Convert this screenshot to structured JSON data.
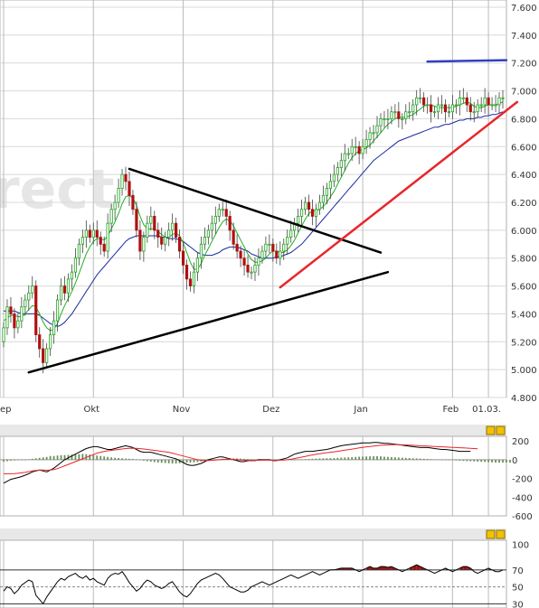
{
  "watermark_text": "rect",
  "chart_data": [
    {
      "type": "candlestick",
      "panel": "price",
      "ylim": [
        4800,
        7600
      ],
      "y_ticks": [
        "7.600",
        "7.400",
        "7.200",
        "7.000",
        "6.800",
        "6.600",
        "6.400",
        "6.200",
        "6.000",
        "5.800",
        "5.600",
        "5.400",
        "5.200",
        "5.000",
        "4.800"
      ],
      "y_tick_values": [
        7600,
        7400,
        7200,
        7000,
        6800,
        6600,
        6400,
        6200,
        6000,
        5800,
        5600,
        5400,
        5200,
        5000,
        4800
      ],
      "x_labels": [
        "ep",
        "Okt",
        "Nov",
        "Dez",
        "Jan",
        "Feb",
        "01.03."
      ],
      "x_label_index": [
        1,
        26,
        51,
        76,
        101,
        126,
        136
      ],
      "grid": true,
      "candles_close": [
        5300,
        5450,
        5400,
        5300,
        5350,
        5450,
        5500,
        5550,
        5600,
        5250,
        5150,
        5050,
        5150,
        5250,
        5350,
        5500,
        5600,
        5550,
        5650,
        5700,
        5800,
        5900,
        5950,
        6000,
        5950,
        6000,
        5950,
        5900,
        5850,
        6050,
        6150,
        6200,
        6300,
        6400,
        6350,
        6250,
        6150,
        6000,
        5850,
        5950,
        6050,
        6100,
        6000,
        5950,
        5900,
        5950,
        6000,
        6050,
        5950,
        5850,
        5750,
        5650,
        5600,
        5700,
        5800,
        5900,
        5950,
        6000,
        6050,
        6100,
        6150,
        6150,
        6100,
        6000,
        5900,
        5850,
        5800,
        5750,
        5700,
        5700,
        5750,
        5800,
        5850,
        5900,
        5900,
        5850,
        5800,
        5850,
        5900,
        5950,
        6000,
        6050,
        6100,
        6150,
        6200,
        6150,
        6100,
        6150,
        6200,
        6250,
        6300,
        6350,
        6400,
        6450,
        6500,
        6550,
        6550,
        6600,
        6600,
        6550,
        6600,
        6650,
        6700,
        6700,
        6750,
        6800,
        6800,
        6800,
        6850,
        6850,
        6800,
        6800,
        6850,
        6850,
        6900,
        6950,
        6950,
        6900,
        6900,
        6850,
        6850,
        6900,
        6900,
        6850,
        6850,
        6900,
        6900,
        6950,
        6950,
        6900,
        6850,
        6850,
        6900,
        6900,
        6950,
        6900,
        6900,
        6900,
        6950,
        6950
      ],
      "candles_open": [
        5200,
        5300,
        5450,
        5400,
        5300,
        5350,
        5450,
        5500,
        5550,
        5600,
        5250,
        5150,
        5050,
        5150,
        5250,
        5350,
        5500,
        5600,
        5550,
        5650,
        5700,
        5800,
        5900,
        5950,
        6000,
        5950,
        6000,
        5950,
        5900,
        5850,
        6050,
        6150,
        6200,
        6300,
        6400,
        6350,
        6250,
        6150,
        6000,
        5850,
        5950,
        6050,
        6100,
        6000,
        5950,
        5900,
        5950,
        6000,
        6050,
        5950,
        5850,
        5750,
        5650,
        5600,
        5700,
        5800,
        5900,
        5950,
        6000,
        6050,
        6100,
        6150,
        6150,
        6100,
        6000,
        5900,
        5850,
        5800,
        5750,
        5700,
        5700,
        5750,
        5800,
        5850,
        5900,
        5900,
        5850,
        5800,
        5850,
        5900,
        5950,
        6000,
        6050,
        6100,
        6150,
        6200,
        6150,
        6100,
        6150,
        6200,
        6250,
        6300,
        6350,
        6400,
        6450,
        6500,
        6550,
        6550,
        6600,
        6600,
        6550,
        6600,
        6650,
        6700,
        6700,
        6750,
        6800,
        6800,
        6800,
        6850,
        6850,
        6800,
        6800,
        6850,
        6850,
        6900,
        6950,
        6950,
        6900,
        6900,
        6850,
        6850,
        6900,
        6900,
        6850,
        6850,
        6900,
        6900,
        6950,
        6950,
        6900,
        6850,
        6850,
        6900,
        6900,
        6950,
        6900,
        6900,
        6900,
        6950
      ],
      "ma_fast": [
        5350,
        5370,
        5390,
        5390,
        5380,
        5380,
        5400,
        5430,
        5460,
        5450,
        5400,
        5340,
        5300,
        5280,
        5290,
        5330,
        5400,
        5460,
        5510,
        5560,
        5620,
        5690,
        5760,
        5830,
        5880,
        5920,
        5940,
        5940,
        5930,
        5960,
        6010,
        6060,
        6120,
        6190,
        6240,
        6250,
        6230,
        6180,
        6100,
        6040,
        6010,
        6010,
        6010,
        5990,
        5970,
        5950,
        5950,
        5970,
        5980,
        5960,
        5910,
        5840,
        5770,
        5720,
        5720,
        5760,
        5820,
        5870,
        5920,
        5970,
        6020,
        6060,
        6080,
        6070,
        6030,
        5980,
        5930,
        5880,
        5830,
        5790,
        5770,
        5770,
        5780,
        5800,
        5830,
        5850,
        5850,
        5840,
        5840,
        5860,
        5890,
        5930,
        5980,
        6030,
        6080,
        6120,
        6140,
        6140,
        6150,
        6170,
        6200,
        6240,
        6280,
        6330,
        6380,
        6430,
        6480,
        6520,
        6550,
        6570,
        6580,
        6590,
        6610,
        6640,
        6670,
        6700,
        6730,
        6760,
        6780,
        6800,
        6810,
        6810,
        6810,
        6820,
        6830,
        6850,
        6870,
        6890,
        6900,
        6900,
        6890,
        6880,
        6880,
        6880,
        6880,
        6880,
        6890,
        6900,
        6910,
        6920,
        6910,
        6890,
        6880,
        6880,
        6890,
        6900,
        6900,
        6900,
        6910,
        6920
      ],
      "ma_slow": [
        5420,
        5420,
        5420,
        5420,
        5410,
        5400,
        5400,
        5400,
        5400,
        5400,
        5390,
        5370,
        5350,
        5330,
        5320,
        5310,
        5320,
        5340,
        5370,
        5400,
        5440,
        5480,
        5520,
        5560,
        5600,
        5640,
        5680,
        5710,
        5740,
        5770,
        5800,
        5830,
        5860,
        5890,
        5920,
        5940,
        5950,
        5960,
        5960,
        5960,
        5960,
        5960,
        5960,
        5960,
        5950,
        5950,
        5940,
        5940,
        5940,
        5930,
        5920,
        5900,
        5880,
        5860,
        5840,
        5830,
        5820,
        5820,
        5820,
        5830,
        5840,
        5860,
        5870,
        5880,
        5880,
        5880,
        5870,
        5860,
        5850,
        5830,
        5820,
        5810,
        5800,
        5800,
        5800,
        5800,
        5810,
        5810,
        5820,
        5830,
        5840,
        5860,
        5880,
        5900,
        5930,
        5960,
        5990,
        6020,
        6050,
        6080,
        6110,
        6140,
        6170,
        6200,
        6230,
        6260,
        6290,
        6320,
        6350,
        6380,
        6410,
        6440,
        6470,
        6500,
        6520,
        6540,
        6560,
        6580,
        6600,
        6620,
        6640,
        6650,
        6660,
        6670,
        6680,
        6690,
        6700,
        6710,
        6720,
        6730,
        6740,
        6740,
        6750,
        6760,
        6760,
        6770,
        6780,
        6790,
        6790,
        6800,
        6800,
        6800,
        6810,
        6810,
        6820,
        6820,
        6830,
        6830,
        6840,
        6850
      ],
      "trendlines": [
        {
          "from": [
            7,
            4980
          ],
          "to": [
            107,
            5700
          ],
          "color": "#000000"
        },
        {
          "from": [
            35,
            6440
          ],
          "to": [
            105,
            5840
          ],
          "color": "#000000"
        },
        {
          "from": [
            77,
            5590
          ],
          "to": [
            145,
            6920
          ],
          "color": "#e8262b"
        },
        {
          "from": [
            118,
            7210
          ],
          "to": [
            140,
            7220
          ],
          "color": "#3040c0"
        }
      ]
    },
    {
      "type": "line",
      "panel": "macd",
      "ylim": [
        -600,
        250
      ],
      "y_ticks": [
        "200",
        "0",
        "-200",
        "-400",
        "-600"
      ],
      "y_tick_values": [
        200,
        0,
        -200,
        -400,
        -600
      ],
      "series": [
        {
          "color": "#000000",
          "values": [
            -250,
            -230,
            -210,
            -200,
            -190,
            -180,
            -165,
            -150,
            -130,
            -120,
            -110,
            -120,
            -130,
            -110,
            -90,
            -60,
            -30,
            0,
            20,
            40,
            60,
            80,
            100,
            120,
            130,
            140,
            140,
            130,
            120,
            110,
            110,
            120,
            130,
            140,
            150,
            140,
            130,
            110,
            90,
            80,
            80,
            80,
            70,
            60,
            50,
            40,
            30,
            20,
            10,
            -10,
            -30,
            -50,
            -60,
            -60,
            -50,
            -40,
            -20,
            0,
            10,
            20,
            30,
            30,
            20,
            10,
            0,
            -10,
            -20,
            -20,
            -10,
            -10,
            -10,
            0,
            0,
            0,
            0,
            -10,
            -10,
            0,
            10,
            20,
            40,
            60,
            70,
            80,
            90,
            90,
            90,
            95,
            100,
            105,
            110,
            120,
            130,
            140,
            150,
            155,
            160,
            165,
            170,
            175,
            180,
            180,
            180,
            185,
            185,
            180,
            175,
            175,
            170,
            165,
            160,
            155,
            150,
            145,
            140,
            135,
            130,
            130,
            130,
            125,
            120,
            115,
            110,
            110,
            105,
            100,
            95,
            90,
            90,
            90,
            90
          ]
        },
        {
          "color": "#e8262b",
          "values": [
            -150,
            -150,
            -150,
            -148,
            -145,
            -140,
            -135,
            -128,
            -120,
            -115,
            -110,
            -110,
            -112,
            -110,
            -105,
            -95,
            -80,
            -65,
            -50,
            -35,
            -20,
            -5,
            10,
            25,
            40,
            55,
            70,
            80,
            90,
            95,
            100,
            105,
            110,
            115,
            120,
            122,
            123,
            122,
            119,
            115,
            110,
            105,
            100,
            95,
            90,
            85,
            80,
            70,
            60,
            50,
            40,
            30,
            20,
            10,
            0,
            -5,
            -8,
            -8,
            -6,
            -3,
            0,
            3,
            5,
            5,
            3,
            0,
            -3,
            -5,
            -6,
            -7,
            -7,
            -6,
            -5,
            -5,
            -5,
            -6,
            -6,
            -5,
            -3,
            0,
            5,
            12,
            20,
            28,
            36,
            44,
            51,
            58,
            64,
            70,
            75,
            80,
            85,
            90,
            96,
            102,
            108,
            114,
            120,
            126,
            132,
            138,
            142,
            146,
            150,
            154,
            156,
            158,
            160,
            160,
            160,
            159,
            158,
            156,
            154,
            152,
            150,
            148,
            146,
            144,
            142,
            140,
            138,
            136,
            134,
            132,
            130,
            128,
            126,
            124,
            122,
            120,
            118
          ]
        }
      ],
      "histogram": [
        -20,
        -15,
        -10,
        -8,
        -6,
        -4,
        -2,
        5,
        10,
        15,
        20,
        25,
        30,
        40,
        40,
        45,
        48,
        50,
        52,
        55,
        58,
        60,
        62,
        60,
        55,
        50,
        45,
        40,
        35,
        30,
        25,
        20,
        18,
        15,
        12,
        10,
        8,
        5,
        0,
        -10,
        -15,
        -20,
        -25,
        -30,
        -32,
        -35,
        -38,
        -40,
        -40,
        -38,
        -35,
        -32,
        -30,
        -28,
        -25,
        -20,
        -15,
        -10,
        -5,
        0,
        5,
        10,
        12,
        14,
        15,
        14,
        12,
        10,
        8,
        5,
        0,
        -2,
        -3,
        -4,
        -5,
        -6,
        -7,
        -6,
        -5,
        -4,
        -2,
        0,
        2,
        4,
        6,
        8,
        10,
        12,
        14,
        15,
        16,
        17,
        18,
        20,
        22,
        24,
        26,
        28,
        30,
        32,
        34,
        35,
        36,
        37,
        38,
        36,
        32,
        30,
        28,
        26,
        24,
        22,
        20,
        18,
        16,
        14,
        12,
        10,
        8,
        6,
        4,
        2,
        0,
        -2,
        -4,
        -6,
        -8,
        -10,
        -12,
        -14,
        -16,
        -18,
        -20,
        -22,
        -24,
        -26,
        -28,
        -30,
        -30,
        -30,
        -30,
        -30
      ]
    },
    {
      "type": "line",
      "panel": "rsi",
      "ylim": [
        25,
        105
      ],
      "y_ticks": [
        "100",
        "70",
        "50",
        "30"
      ],
      "y_tick_values": [
        100,
        70,
        50,
        30
      ],
      "ref_lines": [
        70,
        50,
        30
      ],
      "series": [
        {
          "color": "#000000",
          "values": [
            45,
            50,
            48,
            42,
            46,
            52,
            55,
            58,
            56,
            40,
            35,
            30,
            38,
            44,
            50,
            56,
            60,
            58,
            62,
            64,
            66,
            62,
            60,
            63,
            58,
            60,
            56,
            54,
            52,
            60,
            64,
            66,
            65,
            68,
            62,
            55,
            50,
            45,
            48,
            54,
            58,
            56,
            52,
            50,
            48,
            50,
            54,
            56,
            50,
            44,
            40,
            38,
            42,
            48,
            54,
            58,
            60,
            62,
            64,
            66,
            64,
            60,
            55,
            50,
            48,
            46,
            44,
            44,
            46,
            50,
            52,
            54,
            56,
            54,
            52,
            54,
            56,
            58,
            60,
            62,
            64,
            62,
            60,
            62,
            64,
            66,
            68,
            66,
            64,
            66,
            68,
            70,
            70,
            71,
            72,
            72,
            72,
            72,
            70,
            68,
            70,
            72,
            74,
            72,
            72,
            74,
            74,
            73,
            74,
            72,
            70,
            68,
            70,
            72,
            74,
            76,
            74,
            72,
            70,
            68,
            66,
            68,
            70,
            72,
            70,
            68,
            70,
            72,
            74,
            74,
            72,
            68,
            66,
            68,
            70,
            72,
            70,
            68,
            68,
            70
          ]
        }
      ]
    }
  ]
}
